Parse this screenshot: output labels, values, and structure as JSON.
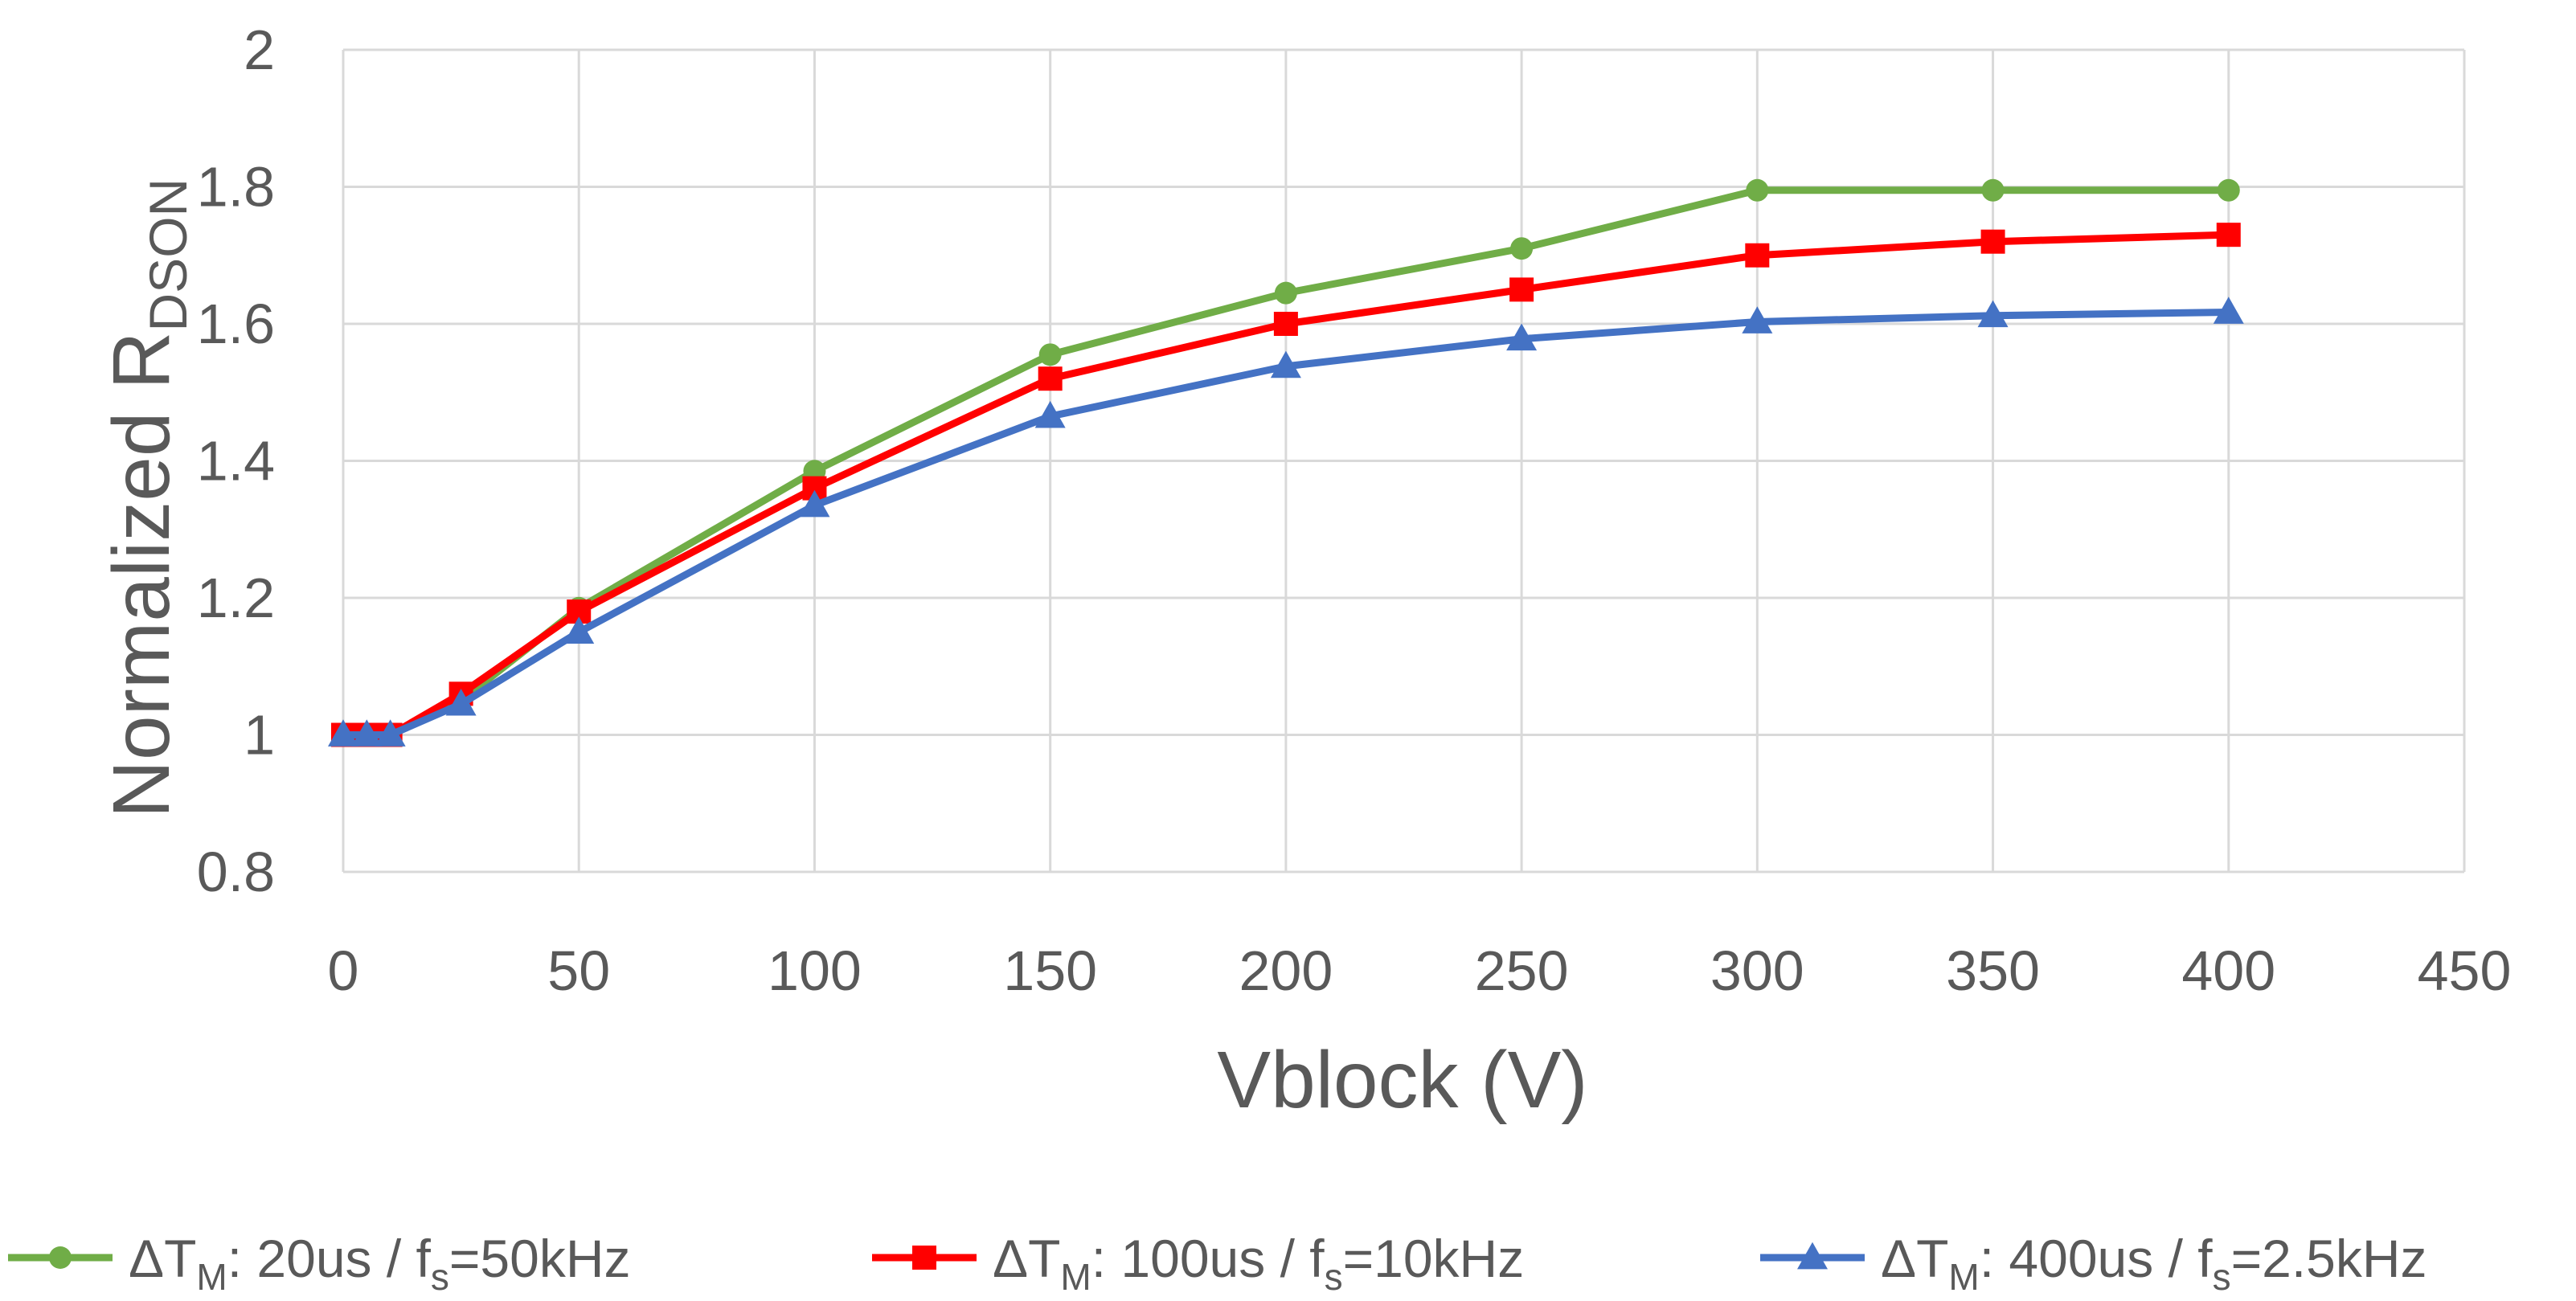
{
  "chart_data": {
    "type": "line",
    "title": "",
    "xlabel": "Vblock (V)",
    "ylabel_main": "Normalized R",
    "ylabel_sub": "DSON",
    "xlim": [
      0,
      450
    ],
    "ylim": [
      0.8,
      2
    ],
    "xticks": [
      0,
      50,
      100,
      150,
      200,
      250,
      300,
      350,
      400,
      450
    ],
    "yticks": [
      0.8,
      1,
      1.2,
      1.4,
      1.6,
      1.8,
      2
    ],
    "xtick_labels": [
      "0",
      "50",
      "100",
      "150",
      "200",
      "250",
      "300",
      "350",
      "400",
      "450"
    ],
    "ytick_labels": [
      "0.8",
      "1",
      "1.2",
      "1.4",
      "1.6",
      "1.8",
      "2"
    ],
    "grid": true,
    "legend_position": "bottom",
    "x": [
      0,
      5,
      10,
      25,
      50,
      100,
      150,
      200,
      250,
      300,
      350,
      400
    ],
    "series": [
      {
        "name": "ΔTM: 20us / fs=50kHz",
        "legend": {
          "p1": "ΔT",
          "s1": "M",
          "p2": ": 20us / f",
          "s2": "s",
          "p3": "=50kHz"
        },
        "color": "#70AD47",
        "marker": "circle",
        "values": [
          1.0,
          1.0,
          1.0,
          1.05,
          1.185,
          1.385,
          1.555,
          1.645,
          1.71,
          1.795,
          1.795,
          1.795
        ]
      },
      {
        "name": "ΔTM: 100us / fs=10kHz",
        "legend": {
          "p1": "ΔT",
          "s1": "M",
          "p2": ": 100us / f",
          "s2": "s",
          "p3": "=10kHz"
        },
        "color": "#FF0000",
        "marker": "square",
        "values": [
          1.0,
          1.0,
          1.0,
          1.06,
          1.18,
          1.36,
          1.52,
          1.6,
          1.65,
          1.7,
          1.72,
          1.73
        ]
      },
      {
        "name": "ΔTM: 400us / fs=2.5kHz",
        "legend": {
          "p1": "ΔT",
          "s1": "M",
          "p2": ": 400us / f",
          "s2": "s",
          "p3": "=2.5kHz"
        },
        "color": "#4472C4",
        "marker": "triangle",
        "values": [
          1.0,
          1.0,
          1.0,
          1.045,
          1.15,
          1.335,
          1.465,
          1.538,
          1.578,
          1.603,
          1.612,
          1.617
        ]
      }
    ]
  }
}
